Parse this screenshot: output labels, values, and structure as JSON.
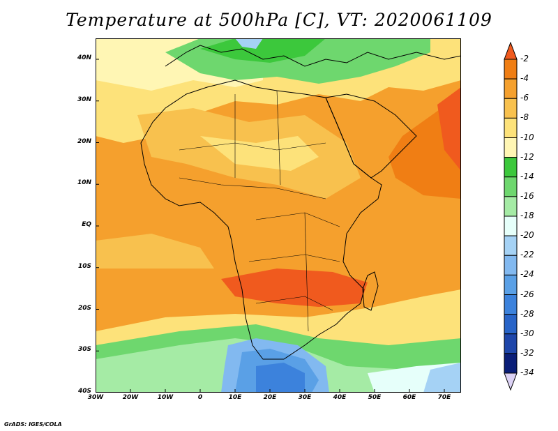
{
  "title": "Temperature at 500hPa [C], VT: 2020061109",
  "credit": "GrADS: IGES/COLA",
  "lat_labels": [
    "40N",
    "30N",
    "20N",
    "10N",
    "EQ",
    "10S",
    "20S",
    "30S",
    "40S"
  ],
  "lon_labels": [
    "30W",
    "20W",
    "10W",
    "0",
    "10E",
    "20E",
    "30E",
    "40E",
    "50E",
    "60E",
    "70E"
  ],
  "colorbar": {
    "labels": [
      "-2",
      "-4",
      "-6",
      "-8",
      "-10",
      "-12",
      "-14",
      "-16",
      "-18",
      "-20",
      "-22",
      "-24",
      "-26",
      "-28",
      "-30",
      "-32",
      "-34"
    ],
    "colors": [
      "#f05a1e",
      "#f07e14",
      "#f5a02d",
      "#f8c14e",
      "#fde27a",
      "#fff6b4",
      "#3cc83c",
      "#6ed76e",
      "#a5eba5",
      "#e6fffa",
      "#a5d2f5",
      "#82b9f0",
      "#5aa0e6",
      "#3c82dc",
      "#2864c8",
      "#1e46aa",
      "#0a1e78"
    ]
  },
  "colors": {
    "ocean_warm": "#f5a02d",
    "hot_core": "#f05a1e",
    "south_cold": "#3c82dc",
    "north_green": "#6ed76e"
  }
}
